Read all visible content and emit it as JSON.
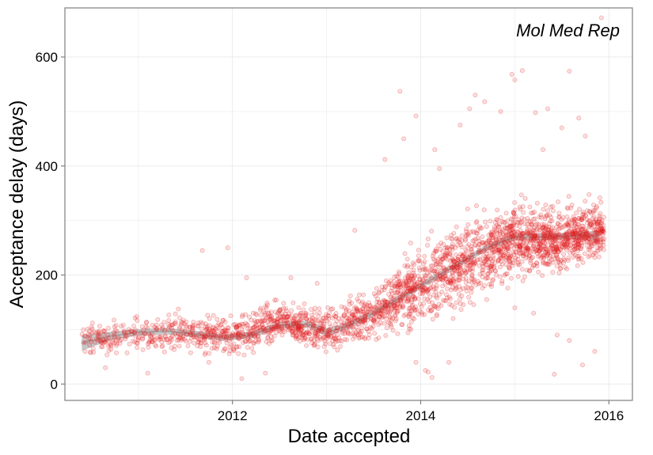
{
  "chart_data": {
    "type": "scatter",
    "annotation": "Mol Med Rep",
    "title": "",
    "xlabel": "Date accepted",
    "ylabel": "Acceptance delay (days)",
    "xlim": [
      2010.22,
      2016.25
    ],
    "ylim": [
      -30,
      690
    ],
    "x_ticks": [
      2012,
      2014,
      2016
    ],
    "y_ticks": [
      0,
      200,
      400,
      600
    ],
    "x_tick_labels": [
      "2012",
      "2014",
      "2016"
    ],
    "y_tick_labels": [
      "0",
      "200",
      "400",
      "600"
    ],
    "grid": true,
    "legend": "none",
    "colors": {
      "points": "#e31a1c",
      "smooth_band": "#bdbdbd",
      "panel_border": "#7f7f7f",
      "grid": "#ebebeb"
    },
    "smooth_curve": {
      "x": [
        2010.4,
        2010.7,
        2011.0,
        2011.3,
        2011.6,
        2011.9,
        2012.2,
        2012.5,
        2012.8,
        2013.0,
        2013.2,
        2013.5,
        2013.8,
        2014.1,
        2014.4,
        2014.7,
        2015.0,
        2015.3,
        2015.6,
        2015.9
      ],
      "y": [
        75,
        88,
        95,
        97,
        92,
        85,
        90,
        108,
        110,
        95,
        105,
        130,
        160,
        190,
        220,
        250,
        270,
        270,
        272,
        272
      ],
      "band_halfwidth": [
        14,
        8,
        6,
        6,
        6,
        6,
        6,
        6,
        6,
        8,
        6,
        6,
        6,
        6,
        6,
        6,
        6,
        6,
        6,
        10
      ]
    },
    "point_density": [
      {
        "x": 2010.5,
        "center": 80,
        "spread": 25,
        "n": 70
      },
      {
        "x": 2011.0,
        "center": 92,
        "spread": 25,
        "n": 90
      },
      {
        "x": 2011.5,
        "center": 95,
        "spread": 30,
        "n": 130
      },
      {
        "x": 2012.0,
        "center": 88,
        "spread": 30,
        "n": 170
      },
      {
        "x": 2012.5,
        "center": 115,
        "spread": 30,
        "n": 220
      },
      {
        "x": 2013.0,
        "center": 98,
        "spread": 30,
        "n": 190
      },
      {
        "x": 2013.5,
        "center": 130,
        "spread": 45,
        "n": 240
      },
      {
        "x": 2014.0,
        "center": 185,
        "spread": 55,
        "n": 300
      },
      {
        "x": 2014.5,
        "center": 220,
        "spread": 65,
        "n": 320
      },
      {
        "x": 2015.0,
        "center": 265,
        "spread": 55,
        "n": 380
      },
      {
        "x": 2015.5,
        "center": 265,
        "spread": 50,
        "n": 360
      },
      {
        "x": 2015.9,
        "center": 282,
        "spread": 40,
        "n": 180
      }
    ],
    "outliers": [
      {
        "x": 2013.78,
        "y": 537
      },
      {
        "x": 2013.95,
        "y": 492
      },
      {
        "x": 2013.62,
        "y": 412
      },
      {
        "x": 2013.82,
        "y": 450
      },
      {
        "x": 2014.15,
        "y": 430
      },
      {
        "x": 2014.42,
        "y": 475
      },
      {
        "x": 2014.52,
        "y": 505
      },
      {
        "x": 2014.58,
        "y": 530
      },
      {
        "x": 2014.68,
        "y": 518
      },
      {
        "x": 2014.85,
        "y": 500
      },
      {
        "x": 2014.97,
        "y": 568
      },
      {
        "x": 2015.0,
        "y": 558
      },
      {
        "x": 2015.08,
        "y": 575
      },
      {
        "x": 2015.22,
        "y": 498
      },
      {
        "x": 2015.35,
        "y": 505
      },
      {
        "x": 2015.5,
        "y": 470
      },
      {
        "x": 2015.58,
        "y": 574
      },
      {
        "x": 2015.68,
        "y": 488
      },
      {
        "x": 2015.92,
        "y": 672
      },
      {
        "x": 2015.75,
        "y": 455
      },
      {
        "x": 2014.2,
        "y": 395
      },
      {
        "x": 2015.3,
        "y": 430
      },
      {
        "x": 2013.95,
        "y": 40
      },
      {
        "x": 2014.05,
        "y": 25
      },
      {
        "x": 2014.08,
        "y": 22
      },
      {
        "x": 2014.12,
        "y": 12
      },
      {
        "x": 2014.3,
        "y": 40
      },
      {
        "x": 2015.42,
        "y": 18
      },
      {
        "x": 2015.45,
        "y": 90
      },
      {
        "x": 2015.58,
        "y": 80
      },
      {
        "x": 2015.72,
        "y": 35
      },
      {
        "x": 2015.85,
        "y": 60
      },
      {
        "x": 2015.0,
        "y": 140
      },
      {
        "x": 2015.2,
        "y": 130
      },
      {
        "x": 2011.68,
        "y": 245
      },
      {
        "x": 2011.95,
        "y": 250
      },
      {
        "x": 2012.15,
        "y": 195
      },
      {
        "x": 2012.62,
        "y": 195
      },
      {
        "x": 2012.9,
        "y": 185
      },
      {
        "x": 2013.3,
        "y": 282
      },
      {
        "x": 2011.75,
        "y": 40
      },
      {
        "x": 2012.35,
        "y": 20
      },
      {
        "x": 2012.1,
        "y": 10
      },
      {
        "x": 2010.65,
        "y": 30
      },
      {
        "x": 2011.1,
        "y": 20
      }
    ]
  }
}
